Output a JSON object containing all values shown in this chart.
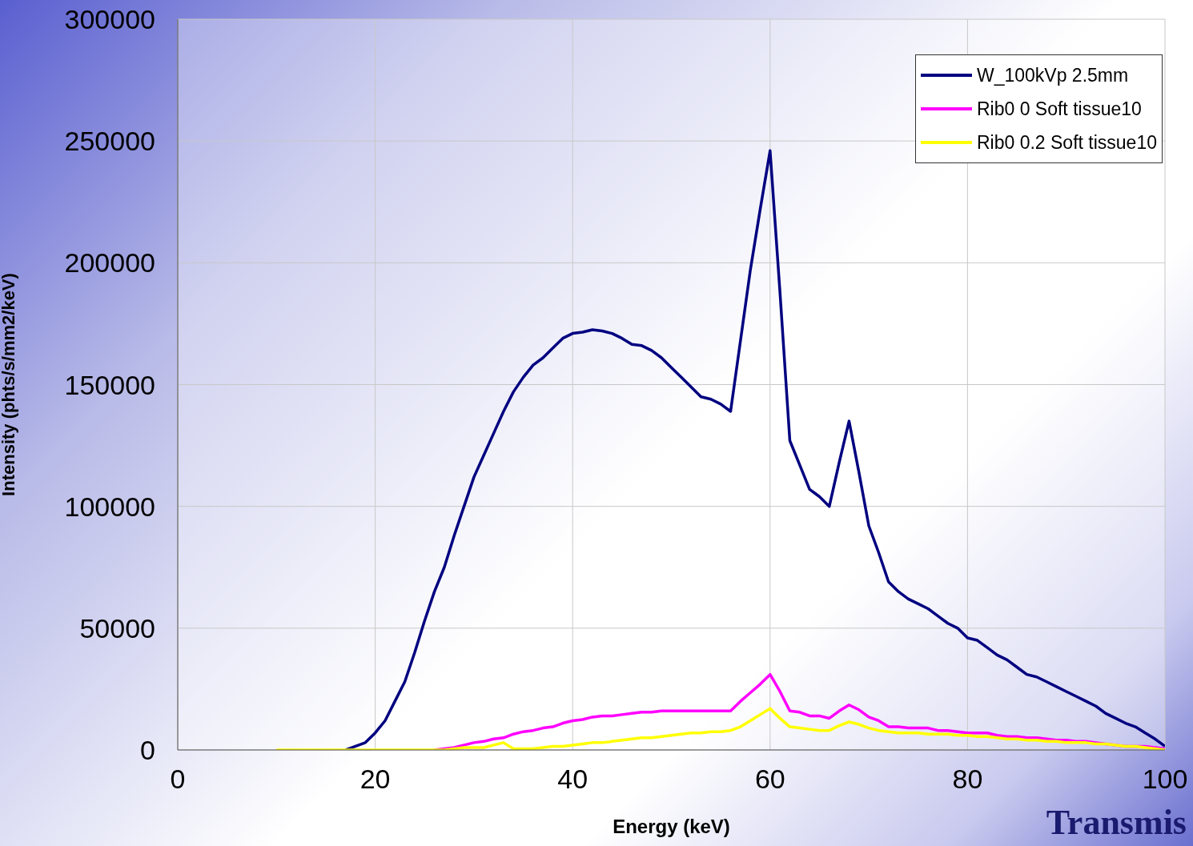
{
  "chart_data": {
    "type": "line",
    "xlabel": "Energy (keV)",
    "ylabel": "Intensity (phts/s/mm2/keV)",
    "annotations": [
      "Transmis"
    ],
    "x": [
      10,
      11,
      12,
      13,
      14,
      15,
      16,
      17,
      18,
      19,
      20,
      21,
      22,
      23,
      24,
      25,
      26,
      27,
      28,
      29,
      30,
      31,
      32,
      33,
      34,
      35,
      36,
      37,
      38,
      39,
      40,
      41,
      42,
      43,
      44,
      45,
      46,
      47,
      48,
      49,
      50,
      51,
      52,
      53,
      54,
      55,
      56,
      57,
      58,
      59,
      60,
      61,
      62,
      63,
      64,
      65,
      66,
      67,
      68,
      69,
      70,
      71,
      72,
      73,
      74,
      75,
      76,
      77,
      78,
      79,
      80,
      81,
      82,
      83,
      84,
      85,
      86,
      87,
      88,
      89,
      90,
      91,
      92,
      93,
      94,
      95,
      96,
      97,
      98,
      99,
      100
    ],
    "xlim": [
      0,
      100
    ],
    "xticks": [
      0,
      20,
      40,
      60,
      80,
      100
    ],
    "ylim": [
      0,
      300000
    ],
    "yticks": [
      0,
      50000,
      100000,
      150000,
      200000,
      250000,
      300000
    ],
    "grid": true,
    "legend": "top right",
    "marker": "none",
    "line_style": "solid",
    "series": [
      {
        "name": "W_100kVp 2.5mm",
        "color": "#000080",
        "values": [
          null,
          null,
          null,
          null,
          null,
          null,
          null,
          0,
          1500,
          3000,
          7000,
          12000,
          20000,
          28000,
          40000,
          53000,
          65000,
          75000,
          88000,
          100000,
          112000,
          121000,
          130000,
          139000,
          147000,
          153000,
          158000,
          161000,
          165000,
          169000,
          171000,
          171500,
          172500,
          172000,
          171000,
          169000,
          166500,
          166000,
          164000,
          161000,
          157000,
          153000,
          149000,
          145000,
          144000,
          142000,
          139000,
          168000,
          197000,
          222000,
          246000,
          188000,
          127000,
          117000,
          107000,
          104000,
          100000,
          118000,
          135000,
          114000,
          92000,
          81000,
          69000,
          65000,
          62000,
          60000,
          58000,
          55000,
          52000,
          50000,
          46000,
          45000,
          42000,
          39000,
          37000,
          34000,
          31000,
          30000,
          28000,
          26000,
          24000,
          22000,
          20000,
          18000,
          15000,
          13000,
          11000,
          9500,
          7000,
          4500,
          1500
        ]
      },
      {
        "name": "Rib0 0 Soft tissue10",
        "color": "#ff00ff",
        "values": [
          null,
          null,
          null,
          null,
          null,
          null,
          null,
          null,
          null,
          null,
          null,
          null,
          null,
          null,
          null,
          null,
          0,
          500,
          1000,
          2000,
          3000,
          3500,
          4500,
          5000,
          6500,
          7500,
          8000,
          9000,
          9500,
          11000,
          12000,
          12500,
          13500,
          14000,
          14000,
          14500,
          15000,
          15500,
          15500,
          16000,
          16000,
          16000,
          16000,
          16000,
          16000,
          16000,
          16000,
          20000,
          23500,
          27000,
          31000,
          24000,
          16000,
          15500,
          14000,
          14000,
          13000,
          16000,
          18500,
          16500,
          13500,
          12000,
          9500,
          9500,
          9000,
          9000,
          9000,
          8000,
          8000,
          7500,
          7000,
          7000,
          7000,
          6000,
          5500,
          5500,
          5000,
          5000,
          4500,
          4000,
          4000,
          3500,
          3500,
          3000,
          2500,
          2000,
          1500,
          1500,
          1500,
          1000,
          500
        ]
      },
      {
        "name": "Rib0 0.2 Soft tissue10",
        "color": "#ffff00",
        "values": [
          0,
          0,
          0,
          0,
          0,
          0,
          0,
          0,
          0,
          0,
          0,
          0,
          0,
          0,
          0,
          0,
          0,
          0,
          500,
          1000,
          1000,
          1000,
          2000,
          3000,
          500,
          500,
          500,
          1000,
          1500,
          1500,
          2000,
          2500,
          3000,
          3000,
          3500,
          4000,
          4500,
          5000,
          5000,
          5500,
          6000,
          6500,
          7000,
          7000,
          7500,
          7500,
          8000,
          9500,
          12000,
          14500,
          17000,
          13000,
          9500,
          9000,
          8500,
          8000,
          8000,
          10000,
          11500,
          10500,
          9000,
          8000,
          7500,
          7000,
          7000,
          7000,
          6500,
          6500,
          6500,
          6000,
          6000,
          5500,
          5500,
          5000,
          4500,
          4500,
          4000,
          4000,
          3500,
          3500,
          3000,
          3000,
          3000,
          2500,
          2500,
          2000,
          1500,
          1500,
          1000,
          500,
          0
        ]
      }
    ]
  }
}
